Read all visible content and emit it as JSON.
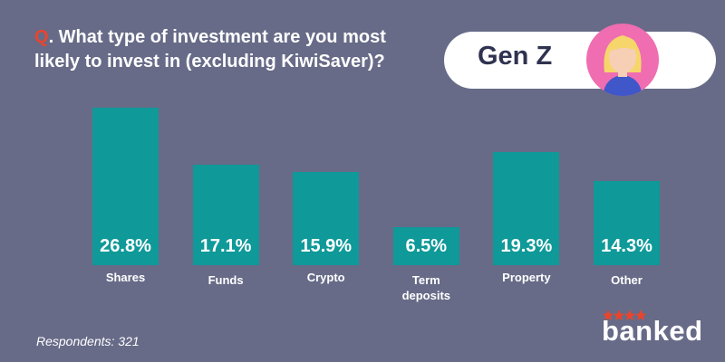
{
  "chart_data": {
    "type": "bar",
    "title_marker": "Q",
    "title": ". What type of investment are you most likely to invest in (excluding KiwiSaver)?",
    "badge": "Gen Z",
    "categories": [
      "Shares",
      "Funds",
      "Crypto",
      "Term deposits",
      "Property",
      "Other"
    ],
    "values": [
      26.8,
      17.1,
      15.9,
      6.5,
      19.3,
      14.3
    ],
    "value_labels": [
      "26.8%",
      "17.1%",
      "15.9%",
      "6.5%",
      "19.3%",
      "14.3%"
    ],
    "color": "#0f9999",
    "footnote": "Respondents: 321",
    "logo": "banked"
  }
}
